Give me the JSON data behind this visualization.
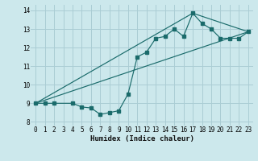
{
  "xlabel": "Humidex (Indice chaleur)",
  "ylabel": "",
  "background_color": "#cce8ec",
  "grid_color": "#aacdd4",
  "line_color": "#1a6b6b",
  "xlim": [
    -0.5,
    23.5
  ],
  "ylim": [
    7.8,
    14.3
  ],
  "xticks": [
    0,
    1,
    2,
    3,
    4,
    5,
    6,
    7,
    8,
    9,
    10,
    11,
    12,
    13,
    14,
    15,
    16,
    17,
    18,
    19,
    20,
    21,
    22,
    23
  ],
  "yticks": [
    8,
    9,
    10,
    11,
    12,
    13,
    14
  ],
  "series1_x": [
    0,
    1,
    2,
    4,
    5,
    6,
    7,
    8,
    9,
    10,
    11,
    12,
    13,
    14,
    15,
    16,
    17,
    18,
    19,
    20,
    21,
    22,
    23
  ],
  "series1_y": [
    9.0,
    9.0,
    9.0,
    9.0,
    8.8,
    8.75,
    8.4,
    8.5,
    8.6,
    9.5,
    11.5,
    11.75,
    12.5,
    12.6,
    13.0,
    12.6,
    13.85,
    13.3,
    13.0,
    12.5,
    12.5,
    12.5,
    12.85
  ],
  "series2_x": [
    0,
    23
  ],
  "series2_y": [
    9.0,
    12.85
  ],
  "series3_x": [
    0,
    17,
    23
  ],
  "series3_y": [
    9.0,
    13.85,
    12.85
  ]
}
